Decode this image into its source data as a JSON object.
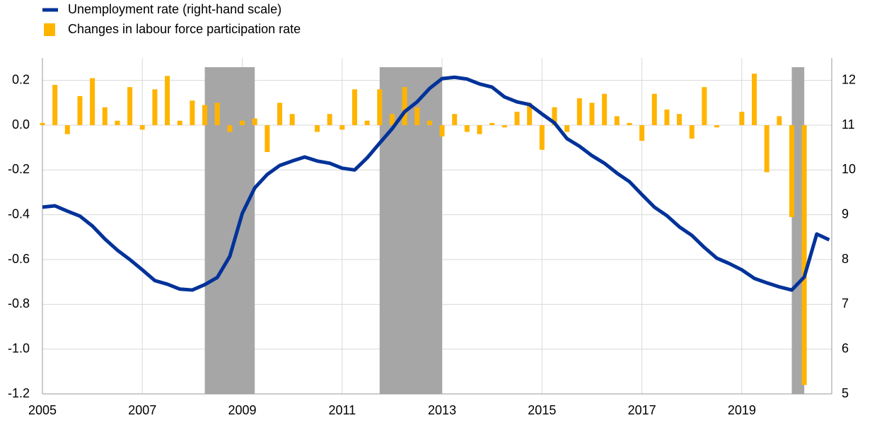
{
  "chart_data": {
    "type": "bar-line",
    "series": [
      {
        "name": "Unemployment rate (right-hand scale)",
        "type": "line",
        "axis": "y2",
        "color": "#003299",
        "x": [
          2005,
          2005.25,
          2005.5,
          2005.75,
          2006,
          2006.25,
          2006.5,
          2006.75,
          2007,
          2007.25,
          2007.5,
          2007.75,
          2008,
          2008.25,
          2008.5,
          2008.75,
          2009,
          2009.25,
          2009.5,
          2009.75,
          2010,
          2010.25,
          2010.5,
          2010.75,
          2011,
          2011.25,
          2011.5,
          2011.75,
          2012,
          2012.25,
          2012.5,
          2012.75,
          2013,
          2013.25,
          2013.5,
          2013.75,
          2014,
          2014.25,
          2014.5,
          2014.75,
          2015,
          2015.25,
          2015.5,
          2015.75,
          2016,
          2016.25,
          2016.5,
          2016.75,
          2017,
          2017.25,
          2017.5,
          2017.75,
          2018,
          2018.25,
          2018.5,
          2018.75,
          2019,
          2019.25,
          2019.5,
          2019.75,
          2020,
          2020.25,
          2020.5,
          2020.75
        ],
        "values": [
          9.17,
          9.2,
          9.08,
          8.97,
          8.75,
          8.46,
          8.21,
          8.0,
          7.77,
          7.53,
          7.45,
          7.34,
          7.32,
          7.44,
          7.6,
          8.07,
          9.03,
          9.6,
          9.9,
          10.1,
          10.2,
          10.29,
          10.2,
          10.15,
          10.04,
          10.0,
          10.27,
          10.6,
          10.92,
          11.3,
          11.52,
          11.82,
          12.04,
          12.07,
          12.03,
          11.92,
          11.85,
          11.63,
          11.52,
          11.46,
          11.25,
          11.05,
          10.7,
          10.53,
          10.32,
          10.15,
          9.93,
          9.74,
          9.45,
          9.17,
          8.98,
          8.73,
          8.54,
          8.27,
          8.03,
          7.91,
          7.77,
          7.58,
          7.48,
          7.39,
          7.32,
          7.61,
          8.57,
          8.44
        ]
      },
      {
        "name": "Changes in labour force participation rate",
        "type": "bar",
        "color": "#ffb400",
        "x": [
          2005,
          2005.25,
          2005.5,
          2005.75,
          2006,
          2006.25,
          2006.5,
          2006.75,
          2007,
          2007.25,
          2007.5,
          2007.75,
          2008,
          2008.25,
          2008.5,
          2008.75,
          2009,
          2009.25,
          2009.5,
          2009.75,
          2010,
          2010.25,
          2010.5,
          2010.75,
          2011,
          2011.25,
          2011.5,
          2011.75,
          2012,
          2012.25,
          2012.5,
          2012.75,
          2013,
          2013.25,
          2013.5,
          2013.75,
          2014,
          2014.25,
          2014.5,
          2014.75,
          2015,
          2015.25,
          2015.5,
          2015.75,
          2016,
          2016.25,
          2016.5,
          2016.75,
          2017,
          2017.25,
          2017.5,
          2017.75,
          2018,
          2018.25,
          2018.5,
          2018.75,
          2019,
          2019.25,
          2019.5,
          2019.75,
          2020,
          2020.25
        ],
        "values": [
          0.01,
          0.18,
          -0.04,
          0.13,
          0.21,
          0.08,
          0.02,
          0.17,
          -0.02,
          0.16,
          0.22,
          0.02,
          0.11,
          0.09,
          0.1,
          -0.03,
          0.02,
          0.03,
          -0.12,
          0.1,
          0.05,
          0.0,
          -0.03,
          0.05,
          -0.02,
          0.16,
          0.02,
          0.16,
          0.05,
          0.17,
          0.08,
          0.02,
          -0.05,
          0.05,
          -0.03,
          -0.04,
          0.01,
          -0.01,
          0.06,
          0.1,
          -0.11,
          0.08,
          -0.03,
          0.12,
          0.1,
          0.14,
          0.04,
          0.01,
          -0.07,
          0.14,
          0.07,
          0.05,
          -0.06,
          0.17,
          -0.01,
          0.0,
          0.06,
          0.23,
          -0.21,
          0.04,
          -0.41,
          -1.16
        ]
      }
    ],
    "shaded_periods": [
      [
        2008.25,
        2009.25
      ],
      [
        2011.75,
        2013
      ],
      [
        2020,
        2020.25
      ]
    ],
    "shade_color": "#a6a6a6",
    "xlim": [
      2005,
      2020.8
    ],
    "xticks": [
      2005,
      2007,
      2009,
      2011,
      2013,
      2015,
      2017,
      2019
    ],
    "ylim": [
      -1.2,
      0.3
    ],
    "yticks": [
      -1.2,
      {
        "value": -1.0,
        "label": "-1.0"
      },
      -0.8,
      -0.6,
      -0.4,
      -0.2,
      {
        "value": 0,
        "label": "0.0"
      },
      0.2
    ],
    "y2lim": [
      5,
      12.5
    ],
    "y2ticks": [
      5,
      6,
      7,
      8,
      9,
      10,
      11,
      12
    ],
    "grid": true,
    "legend": "top-left"
  }
}
